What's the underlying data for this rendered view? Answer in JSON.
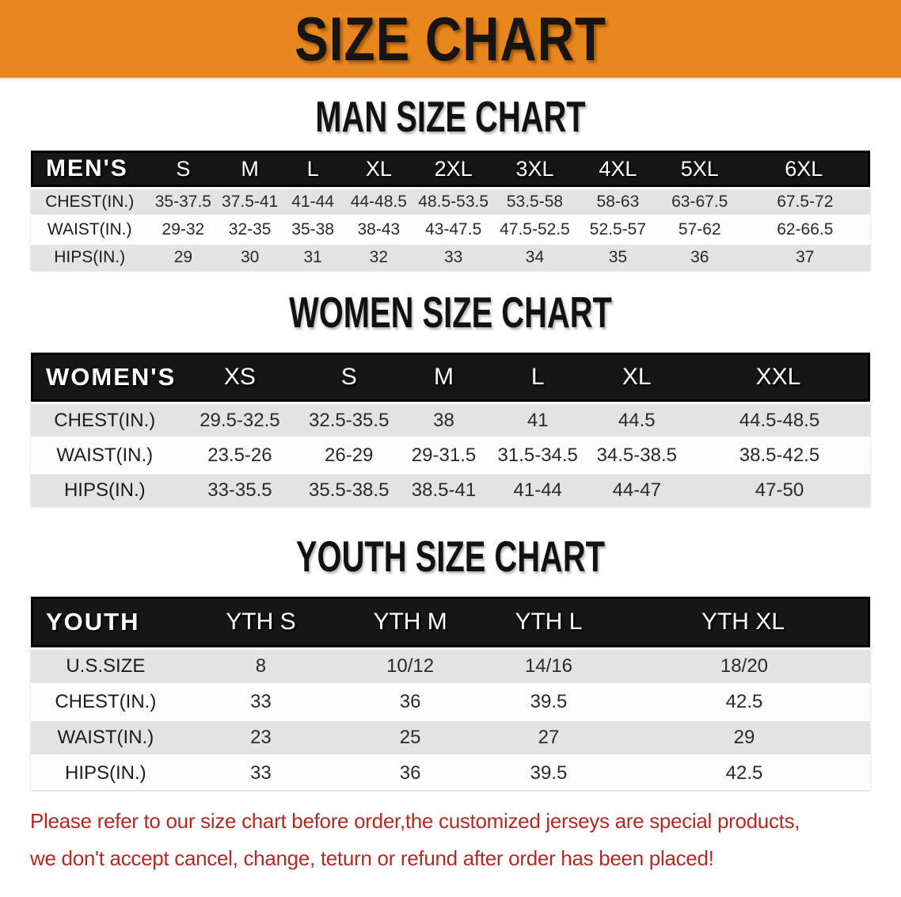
{
  "colors": {
    "banner-bg": "#E8871E",
    "banner-text": "#181411",
    "heading-text": "#121212",
    "table-header-bg": "#161616",
    "table-header-text": "#ffffff",
    "row-shaded": "#e3e3e3",
    "row-plain": "#fdfdfd",
    "notice-text": "#B22A25"
  },
  "banner": {
    "title": "SIZE CHART"
  },
  "sections": {
    "men": {
      "title": "MAN SIZE CHART",
      "table": {
        "label": "MEN'S",
        "sizes": [
          "S",
          "M",
          "L",
          "XL",
          "2XL",
          "3XL",
          "4XL",
          "5XL",
          "6XL"
        ],
        "col_widths": [
          "14%",
          "8.3%",
          "7.6%",
          "7.4%",
          "8.3%",
          "9.5%",
          "9.9%",
          "9.9%",
          "9.6%",
          "15.5%"
        ],
        "rows": [
          {
            "label": "CHEST(IN.)",
            "values": [
              "35-37.5",
              "37.5-41",
              "41-44",
              "44-48.5",
              "48.5-53.5",
              "53.5-58",
              "58-63",
              "63-67.5",
              "67.5-72"
            ]
          },
          {
            "label": "WAIST(IN.)",
            "values": [
              "29-32",
              "32-35",
              "35-38",
              "38-43",
              "43-47.5",
              "47.5-52.5",
              "52.5-57",
              "57-62",
              "62-66.5"
            ]
          },
          {
            "label": "HIPS(IN.)",
            "values": [
              "29",
              "30",
              "31",
              "32",
              "33",
              "34",
              "35",
              "36",
              "37"
            ]
          }
        ]
      }
    },
    "women": {
      "title": "WOMEN SIZE CHART",
      "table": {
        "label": "WOMEN'S",
        "sizes": [
          "XS",
          "S",
          "M",
          "L",
          "XL",
          "XXL"
        ],
        "col_widths": [
          "17.6%",
          "14.6%",
          "11.4%",
          "11.2%",
          "11.2%",
          "12.4%",
          "21.6%"
        ],
        "rows": [
          {
            "label": "CHEST(IN.)",
            "values": [
              "29.5-32.5",
              "32.5-35.5",
              "38",
              "41",
              "44.5",
              "44.5-48.5"
            ]
          },
          {
            "label": "WAIST(IN.)",
            "values": [
              "23.5-26",
              "26-29",
              "29-31.5",
              "31.5-34.5",
              "34.5-38.5",
              "38.5-42.5"
            ]
          },
          {
            "label": "HIPS(IN.)",
            "values": [
              "33-35.5",
              "35.5-38.5",
              "38.5-41",
              "41-44",
              "44-47",
              "47-50"
            ]
          }
        ]
      }
    },
    "youth": {
      "title": "YOUTH SIZE CHART",
      "table": {
        "label": "YOUTH",
        "sizes": [
          "YTH S",
          "YTH M",
          "YTH L",
          "YTH XL"
        ],
        "col_widths": [
          "17.8%",
          "19.2%",
          "16.4%",
          "16.6%",
          "30%"
        ],
        "rows": [
          {
            "label": "U.S.SIZE",
            "values": [
              "8",
              "10/12",
              "14/16",
              "18/20"
            ]
          },
          {
            "label": "CHEST(IN.)",
            "values": [
              "33",
              "36",
              "39.5",
              "42.5"
            ]
          },
          {
            "label": "WAIST(IN.)",
            "values": [
              "23",
              "25",
              "27",
              "29"
            ]
          },
          {
            "label": "HIPS(IN.)",
            "values": [
              "33",
              "36",
              "39.5",
              "42.5"
            ]
          }
        ]
      }
    }
  },
  "notice": {
    "line1": "Please refer to our size chart before order,the customized jerseys are special products,",
    "line2": "we don't accept cancel, change, teturn or refund after order has been placed!"
  }
}
